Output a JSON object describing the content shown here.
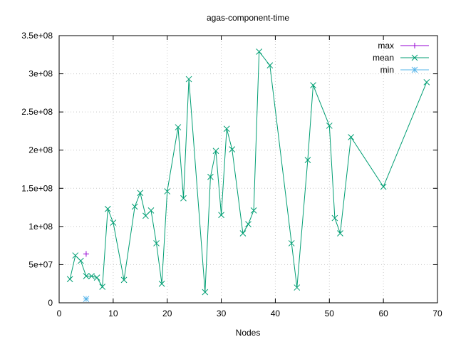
{
  "chart_data": {
    "type": "line",
    "title": "agas-component-time",
    "xlabel": "Nodes",
    "ylabel": "",
    "xlim": [
      0,
      70
    ],
    "ylim": [
      0,
      350000000
    ],
    "xticks": [
      0,
      10,
      20,
      30,
      40,
      50,
      60,
      70
    ],
    "xtick_labels": [
      "0",
      "10",
      "20",
      "30",
      "40",
      "50",
      "60",
      "70"
    ],
    "yticks": [
      0,
      50000000,
      100000000,
      150000000,
      200000000,
      250000000,
      300000000,
      350000000
    ],
    "ytick_labels": [
      "0",
      "5e+07",
      "1e+08",
      "1.5e+08",
      "2e+08",
      "2.5e+08",
      "3e+08",
      "3.5e+08"
    ],
    "grid": true,
    "legend_position": "top-right",
    "series": [
      {
        "name": "max",
        "color": "#9400d3",
        "marker": "plus",
        "line": false,
        "x": [
          5
        ],
        "y": [
          64000000
        ]
      },
      {
        "name": "mean",
        "color": "#009e73",
        "marker": "cross",
        "line": true,
        "x": [
          2,
          3,
          4,
          5,
          6,
          7,
          8,
          9,
          10,
          12,
          14,
          15,
          16,
          17,
          18,
          19,
          20,
          22,
          23,
          24,
          27,
          28,
          29,
          30,
          31,
          32,
          34,
          35,
          36,
          37,
          39,
          43,
          44,
          46,
          47,
          50,
          51,
          52,
          54,
          60,
          68
        ],
        "y": [
          31000000,
          62000000,
          55000000,
          35000000,
          35000000,
          33000000,
          21000000,
          123000000,
          105000000,
          30000000,
          126000000,
          144000000,
          114000000,
          121000000,
          78000000,
          25000000,
          146000000,
          230000000,
          137000000,
          293000000,
          14000000,
          165000000,
          199000000,
          115000000,
          228000000,
          201000000,
          91000000,
          103000000,
          121000000,
          329000000,
          311000000,
          78000000,
          20000000,
          187000000,
          285000000,
          232000000,
          111000000,
          91000000,
          217000000,
          152000000,
          289000000
        ]
      },
      {
        "name": "min",
        "color": "#56b4e9",
        "marker": "star",
        "line": false,
        "x": [
          5
        ],
        "y": [
          5000000
        ]
      }
    ]
  }
}
